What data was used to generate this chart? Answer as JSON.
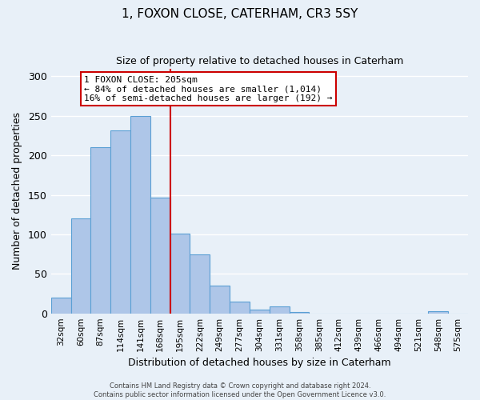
{
  "title": "1, FOXON CLOSE, CATERHAM, CR3 5SY",
  "subtitle": "Size of property relative to detached houses in Caterham",
  "xlabel": "Distribution of detached houses by size in Caterham",
  "ylabel": "Number of detached properties",
  "bar_labels": [
    "32sqm",
    "60sqm",
    "87sqm",
    "114sqm",
    "141sqm",
    "168sqm",
    "195sqm",
    "222sqm",
    "249sqm",
    "277sqm",
    "304sqm",
    "331sqm",
    "358sqm",
    "385sqm",
    "412sqm",
    "439sqm",
    "466sqm",
    "494sqm",
    "521sqm",
    "548sqm",
    "575sqm"
  ],
  "bar_values": [
    20,
    120,
    210,
    232,
    250,
    147,
    101,
    75,
    35,
    15,
    5,
    9,
    2,
    0,
    0,
    0,
    0,
    0,
    0,
    3,
    0
  ],
  "bar_color": "#aec6e8",
  "bar_edge_color": "#5a9fd4",
  "background_color": "#e8f0f8",
  "grid_color": "#ffffff",
  "vline_after_index": 6,
  "vline_color": "#cc0000",
  "annotation_title": "1 FOXON CLOSE: 205sqm",
  "annotation_line1": "← 84% of detached houses are smaller (1,014)",
  "annotation_line2": "16% of semi-detached houses are larger (192) →",
  "annotation_box_color": "#ffffff",
  "annotation_border_color": "#cc0000",
  "ylim": [
    0,
    310
  ],
  "yticks": [
    0,
    50,
    100,
    150,
    200,
    250,
    300
  ],
  "footer_line1": "Contains HM Land Registry data © Crown copyright and database right 2024.",
  "footer_line2": "Contains public sector information licensed under the Open Government Licence v3.0."
}
